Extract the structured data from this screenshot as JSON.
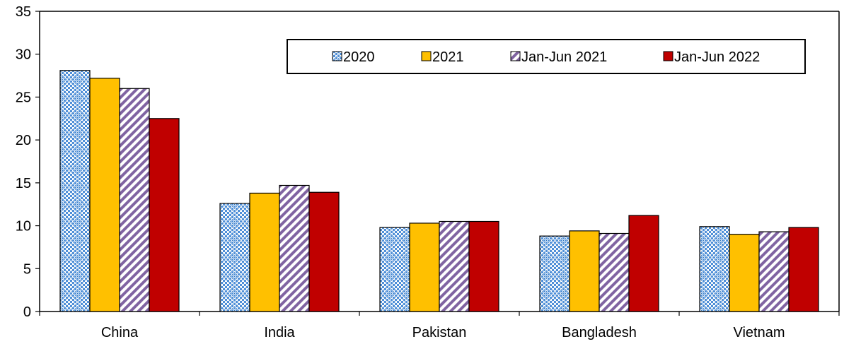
{
  "chart_data": {
    "type": "bar",
    "categories": [
      "China",
      "India",
      "Pakistan",
      "Bangladesh",
      "Vietnam"
    ],
    "series": [
      {
        "name": "2020",
        "values": [
          28.1,
          12.6,
          9.8,
          8.8,
          9.9
        ],
        "fill": "pattern-dots-blue",
        "color": "#2e75b6"
      },
      {
        "name": "2021",
        "values": [
          27.2,
          13.8,
          10.3,
          9.4,
          9.0
        ],
        "fill": "solid",
        "color": "#ffc000"
      },
      {
        "name": "Jan-Jun 2021",
        "values": [
          26.0,
          14.7,
          10.5,
          9.1,
          9.3
        ],
        "fill": "pattern-diagonal-purple",
        "color": "#8064a2"
      },
      {
        "name": "Jan-Jun 2022",
        "values": [
          22.5,
          13.9,
          10.5,
          11.2,
          9.8
        ],
        "fill": "solid",
        "color": "#c00000"
      }
    ],
    "yticks": [
      "0",
      "5",
      "10",
      "15",
      "20",
      "25",
      "30",
      "35"
    ],
    "ylim": [
      0,
      35
    ],
    "legend_position": "top-right",
    "grid": false
  }
}
